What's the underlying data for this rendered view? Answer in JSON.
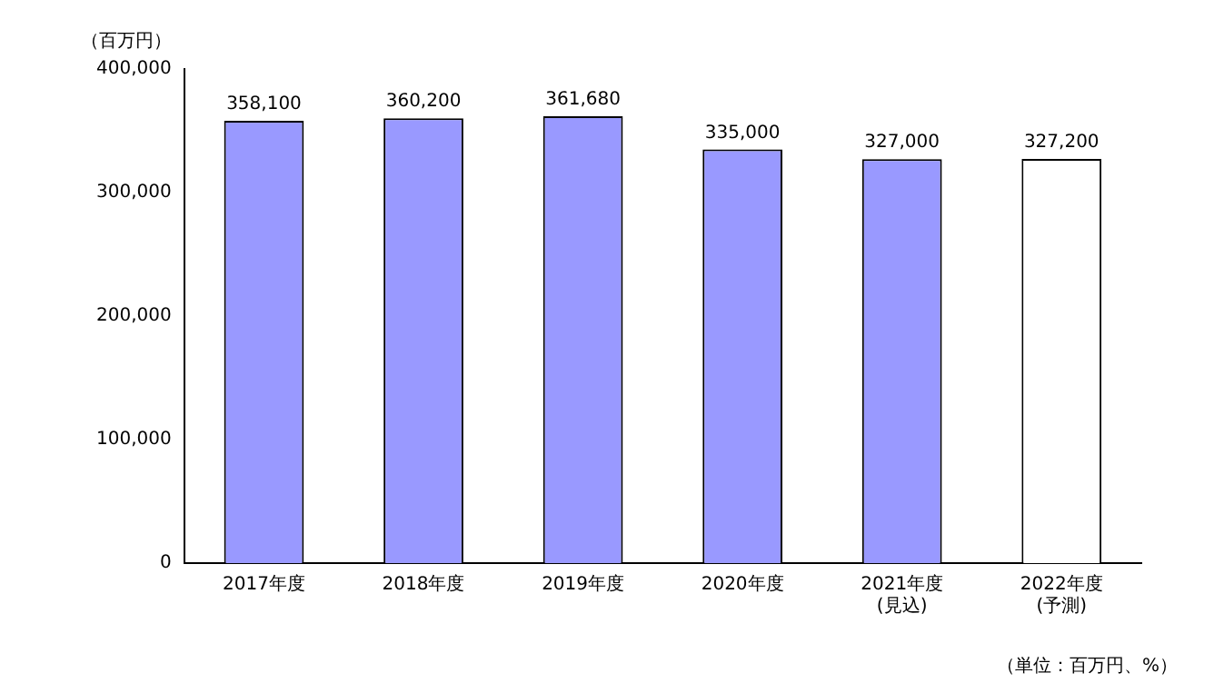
{
  "chart_data": {
    "type": "bar",
    "ylabel": "（百万円）",
    "categories": [
      "2017年度",
      "2018年度",
      "2019年度",
      "2020年度",
      "2021年度\n(見込)",
      "2022年度\n(予測)"
    ],
    "values": [
      358100,
      360200,
      361680,
      335000,
      327000,
      327200
    ],
    "colors": [
      "#9999ff",
      "#9999ff",
      "#9999ff",
      "#9999ff",
      "#9999ff",
      "#ffffff"
    ],
    "value_labels": [
      "358,100",
      "360,200",
      "361,680",
      "335,000",
      "327,000",
      "327,200"
    ],
    "ylim": [
      0,
      400000
    ],
    "yticks": [
      {
        "value": 0,
        "label": "0"
      },
      {
        "value": 100000,
        "label": "100,000"
      },
      {
        "value": 200000,
        "label": "200,000"
      },
      {
        "value": 300000,
        "label": "300,000"
      },
      {
        "value": 400000,
        "label": "400,000"
      }
    ],
    "grid": false,
    "annotations": [
      "（単位：百万円、%）"
    ]
  }
}
